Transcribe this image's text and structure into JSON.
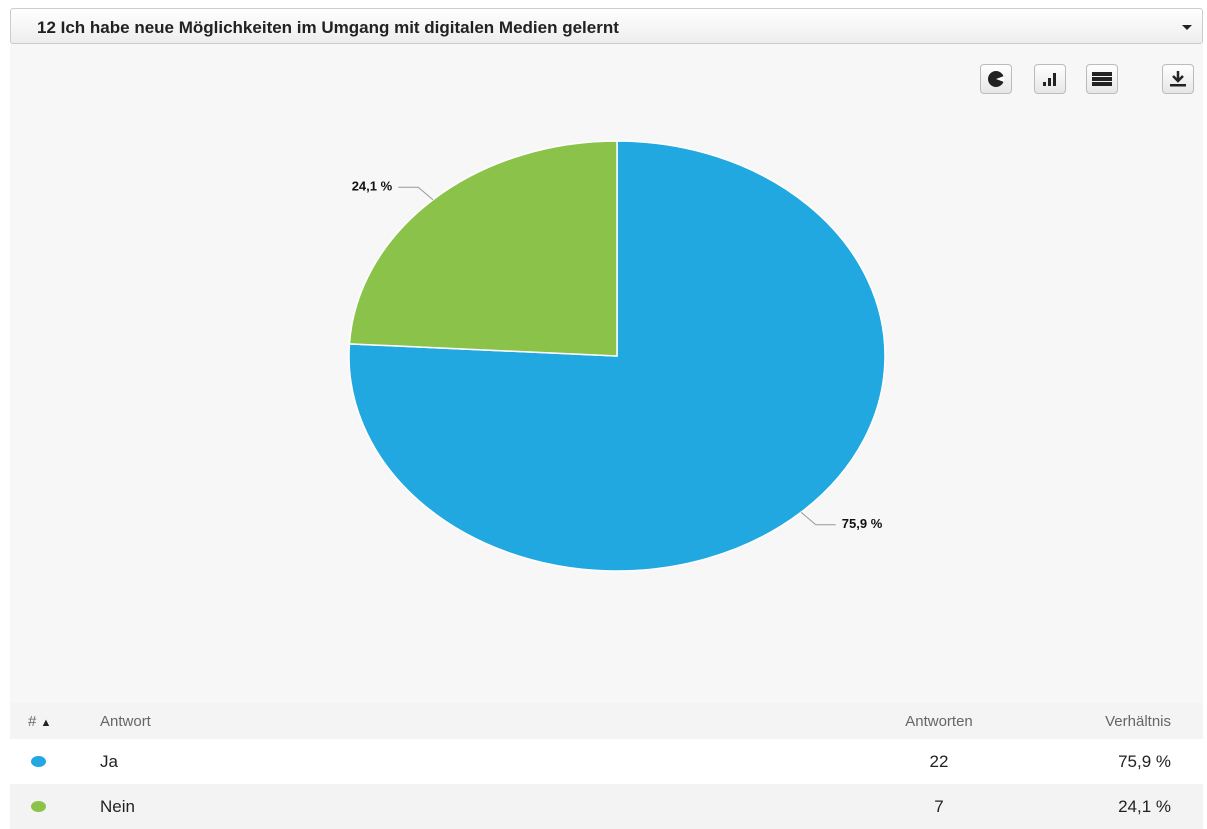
{
  "header": {
    "title": "12 Ich habe neue Möglichkeiten im Umgang mit digitalen Medien gelernt"
  },
  "chart_data": {
    "type": "pie",
    "categories": [
      "Ja",
      "Nein"
    ],
    "values": [
      75.9,
      24.1
    ],
    "value_labels": [
      "75,9 %",
      "24,1 %"
    ],
    "colors": [
      "#21a8e0",
      "#8bc34a"
    ]
  },
  "table": {
    "columns": [
      "#",
      "Antwort",
      "Antworten",
      "Verhältnis"
    ],
    "rows": [
      [
        "Ja",
        "22",
        "75,9 %"
      ],
      [
        "Nein",
        "7",
        "24,1 %"
      ]
    ]
  }
}
